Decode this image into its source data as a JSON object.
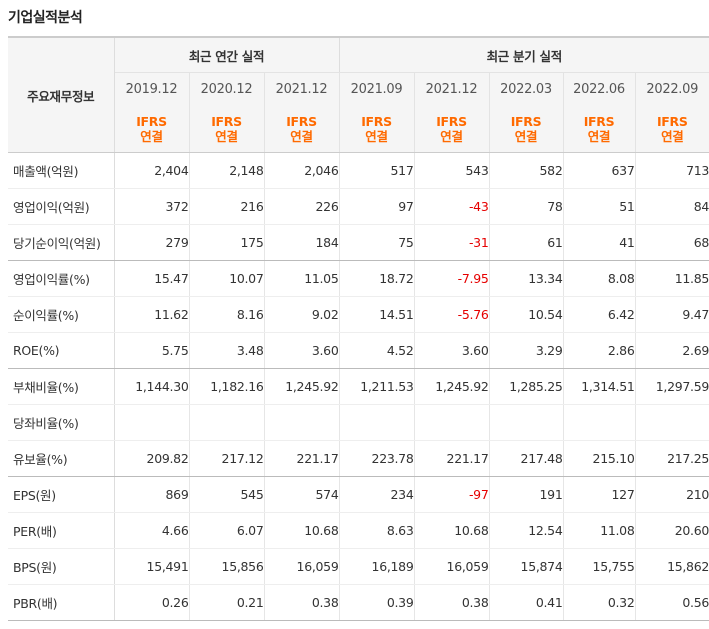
{
  "title": "기업실적분석",
  "header": {
    "corner_label": "주요재무정보",
    "annual_label": "최근 연간 실적",
    "quarter_label": "최근 분기 실적",
    "periods": [
      "2019.12",
      "2020.12",
      "2021.12",
      "2021.09",
      "2021.12",
      "2022.03",
      "2022.06",
      "2022.09"
    ],
    "basis_top": "IFRS",
    "basis_bottom": "연결"
  },
  "rows": [
    {
      "label": "매출액(억원)",
      "values": [
        "2,404",
        "2,148",
        "2,046",
        "517",
        "543",
        "582",
        "637",
        "713"
      ]
    },
    {
      "label": "영업이익(억원)",
      "values": [
        "372",
        "216",
        "226",
        "97",
        "-43",
        "78",
        "51",
        "84"
      ]
    },
    {
      "label": "당기순이익(억원)",
      "values": [
        "279",
        "175",
        "184",
        "75",
        "-31",
        "61",
        "41",
        "68"
      ]
    },
    {
      "label": "영업이익률(%)",
      "values": [
        "15.47",
        "10.07",
        "11.05",
        "18.72",
        "-7.95",
        "13.34",
        "8.08",
        "11.85"
      ]
    },
    {
      "label": "순이익률(%)",
      "values": [
        "11.62",
        "8.16",
        "9.02",
        "14.51",
        "-5.76",
        "10.54",
        "6.42",
        "9.47"
      ]
    },
    {
      "label": "ROE(%)",
      "values": [
        "5.75",
        "3.48",
        "3.60",
        "4.52",
        "3.60",
        "3.29",
        "2.86",
        "2.69"
      ]
    },
    {
      "label": "부채비율(%)",
      "values": [
        "1,144.30",
        "1,182.16",
        "1,245.92",
        "1,211.53",
        "1,245.92",
        "1,285.25",
        "1,314.51",
        "1,297.59"
      ]
    },
    {
      "label": "당좌비율(%)",
      "values": [
        "",
        "",
        "",
        "",
        "",
        "",
        "",
        ""
      ]
    },
    {
      "label": "유보율(%)",
      "values": [
        "209.82",
        "217.12",
        "221.17",
        "223.78",
        "221.17",
        "217.48",
        "215.10",
        "217.25"
      ]
    },
    {
      "label": "EPS(원)",
      "values": [
        "869",
        "545",
        "574",
        "234",
        "-97",
        "191",
        "127",
        "210"
      ]
    },
    {
      "label": "PER(배)",
      "values": [
        "4.66",
        "6.07",
        "10.68",
        "8.63",
        "10.68",
        "12.54",
        "11.08",
        "20.60"
      ]
    },
    {
      "label": "BPS(원)",
      "values": [
        "15,491",
        "15,856",
        "16,059",
        "16,189",
        "16,059",
        "15,874",
        "15,755",
        "15,862"
      ]
    },
    {
      "label": "PBR(배)",
      "values": [
        "0.26",
        "0.21",
        "0.38",
        "0.39",
        "0.38",
        "0.41",
        "0.32",
        "0.56"
      ]
    }
  ],
  "colors": {
    "accent_orange": "#ff6a00",
    "negative_red": "#e60000",
    "header_bg": "#f5f5f5"
  }
}
